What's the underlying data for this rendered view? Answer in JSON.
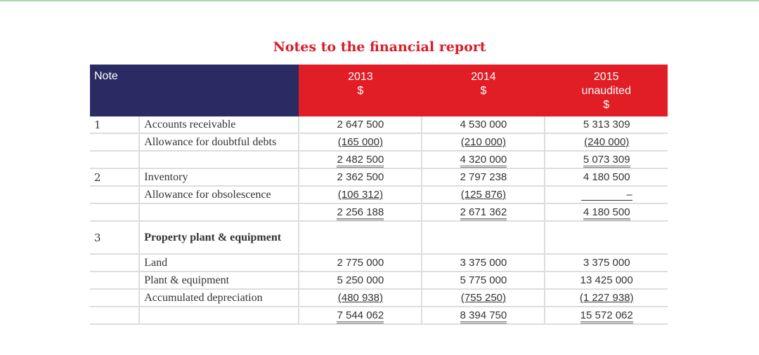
{
  "title": "Notes to the financial report",
  "header": {
    "note": "Note",
    "years": [
      [
        "2013",
        "$"
      ],
      [
        "2014",
        "$"
      ],
      [
        "2015",
        "unaudited",
        "$"
      ]
    ]
  },
  "rows": [
    {
      "note": "1",
      "desc": "Accounts receivable",
      "values": [
        "2 647 500",
        "4 530 000",
        "5 313 309"
      ],
      "style": ""
    },
    {
      "note": "",
      "desc": "Allowance for doubtful debts",
      "values": [
        "(165 000)",
        "(210 000)",
        "(240 000)"
      ],
      "style": "u"
    },
    {
      "note": "",
      "desc": "",
      "values": [
        "2 482 500",
        "4 320 000",
        "5 073 309"
      ],
      "style": "uu"
    },
    {
      "note": "2",
      "desc": "Inventory",
      "values": [
        "2 362 500",
        "2 797 238",
        "4 180 500"
      ],
      "style": ""
    },
    {
      "note": "",
      "desc": "Allowance for obsolescence",
      "values": [
        "(106 312)",
        "(125 876)",
        "–"
      ],
      "style": "u"
    },
    {
      "note": "",
      "desc": "",
      "values": [
        "2 256 188",
        "2 671 362",
        "4 180 500"
      ],
      "style": "uu"
    },
    {
      "note": "3",
      "desc": "Property plant & equipment",
      "values": [
        "",
        "",
        ""
      ],
      "style": "bold"
    },
    {
      "note": "",
      "desc": "Land",
      "values": [
        "2 775 000",
        "3 375 000",
        "3 375 000"
      ],
      "style": ""
    },
    {
      "note": "",
      "desc": "Plant & equipment",
      "values": [
        "5 250 000",
        "5 775 000",
        "13 425 000"
      ],
      "style": ""
    },
    {
      "note": "",
      "desc": "Accumulated depreciation",
      "values": [
        "(480 938)",
        "(755 250)",
        "(1 227 938)"
      ],
      "style": "u"
    },
    {
      "note": "",
      "desc": "",
      "values": [
        "7 544 062",
        "8 394 750",
        "15 572 062"
      ],
      "style": "uu"
    }
  ]
}
